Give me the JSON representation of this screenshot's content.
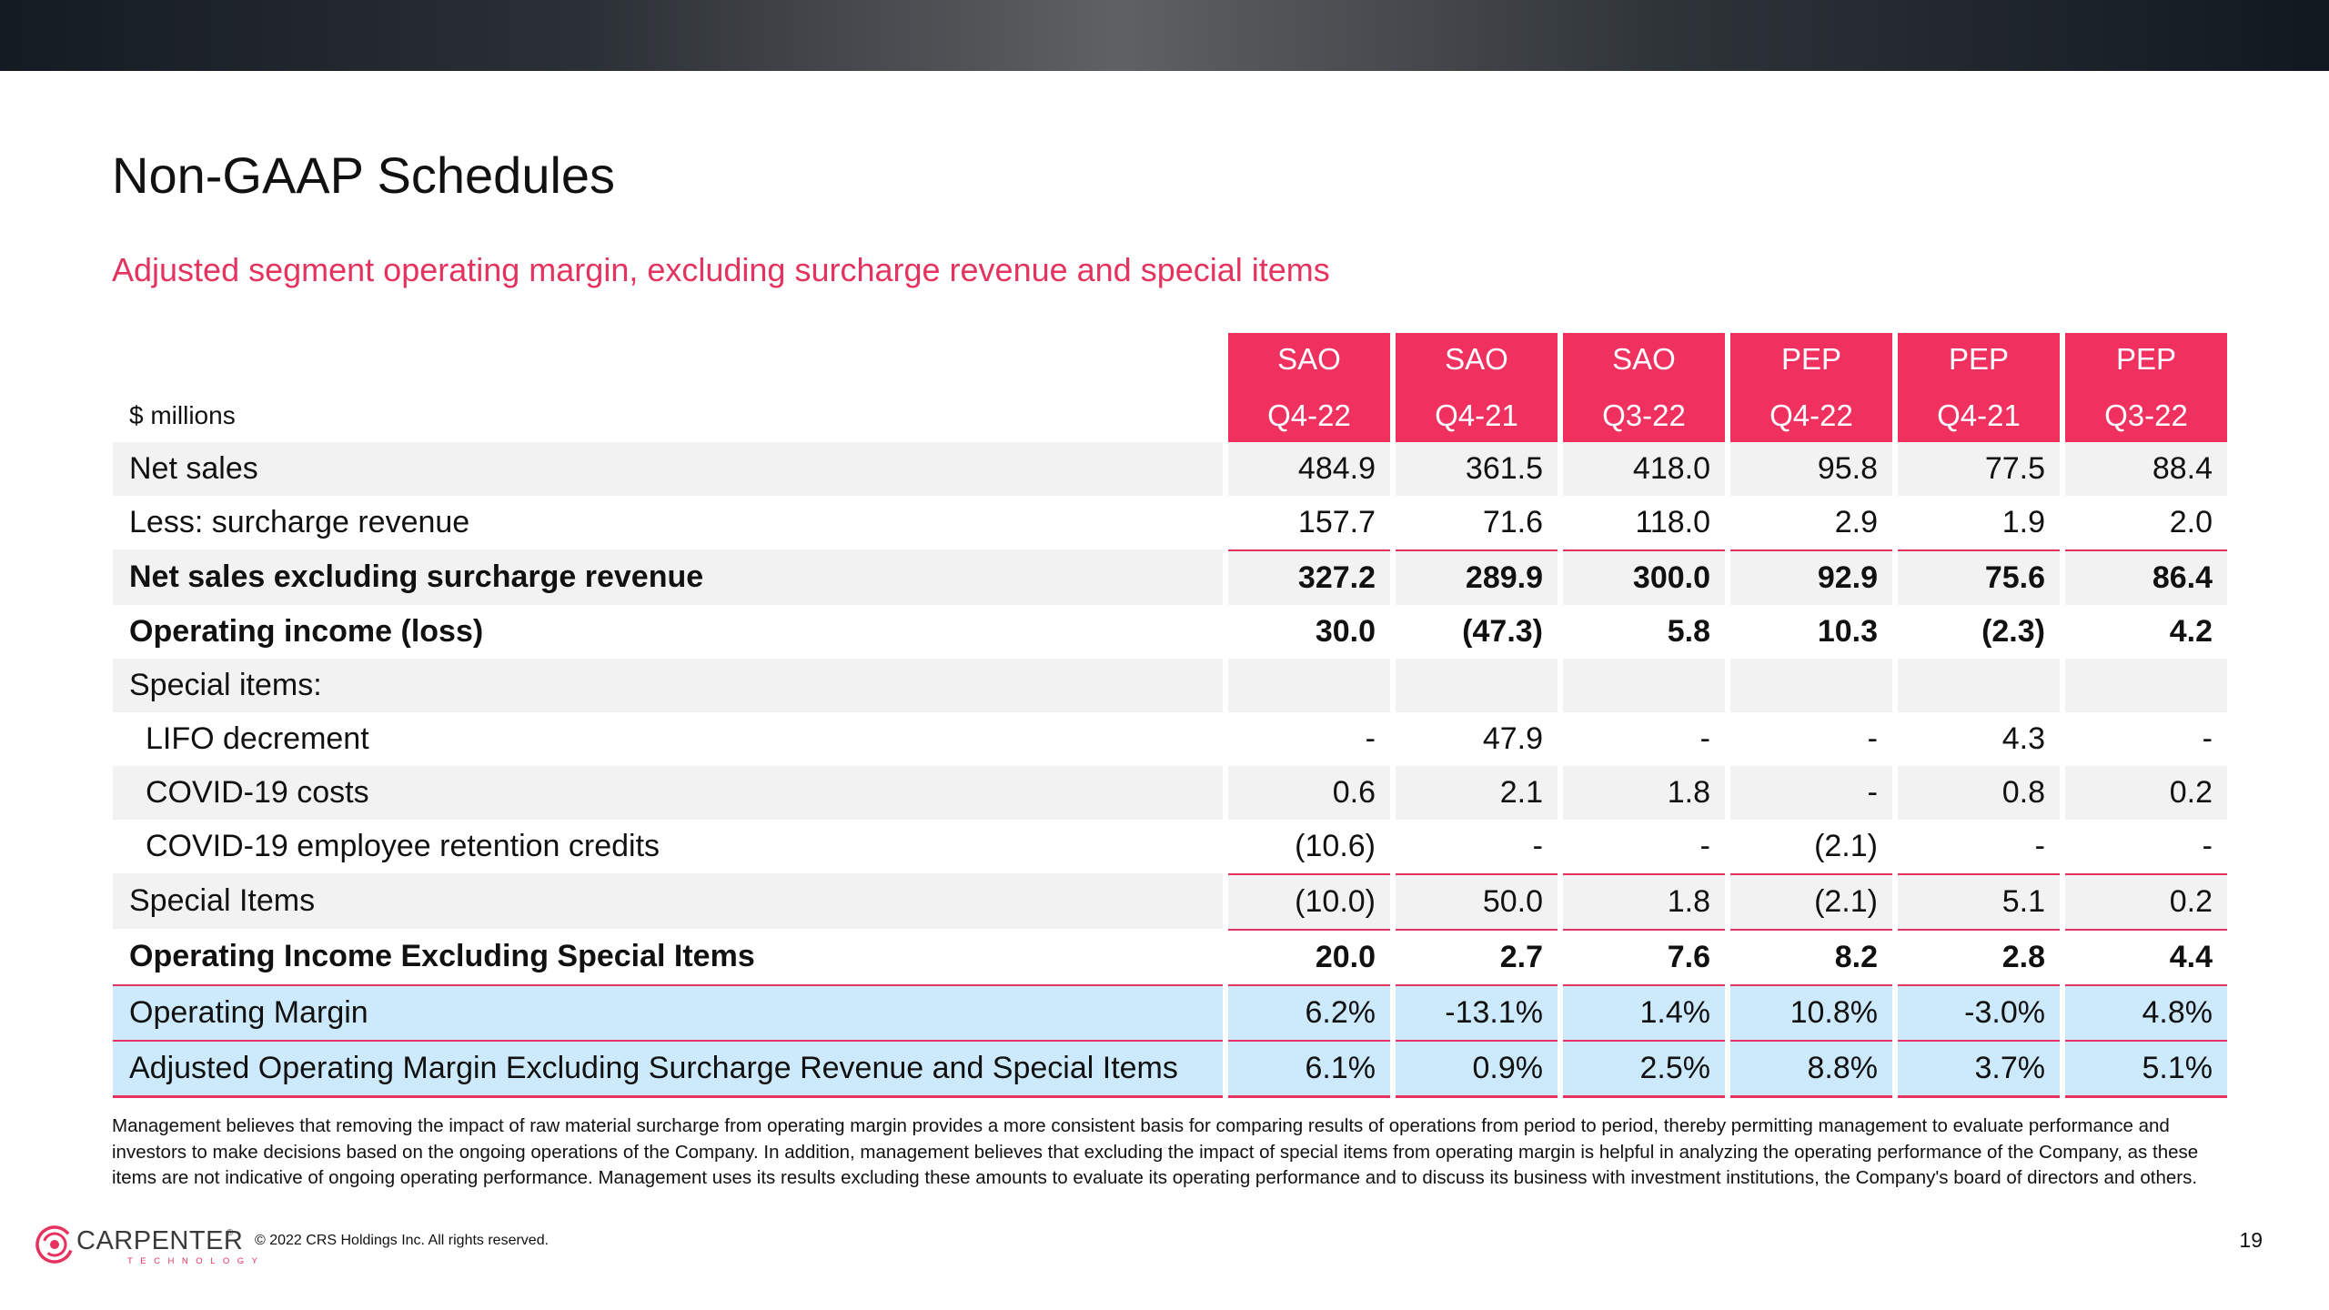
{
  "page": {
    "title": "Non-GAAP Schedules",
    "subtitle": "Adjusted segment operating margin, excluding surcharge revenue and special items"
  },
  "colors": {
    "accent": "#e5335f",
    "header_fill": "#f0305e",
    "row_shade": "#f2f2f2",
    "margin_highlight": "#cdeafc"
  },
  "table": {
    "units_label": "$ millions",
    "segments": [
      "SAO",
      "SAO",
      "SAO",
      "PEP",
      "PEP",
      "PEP"
    ],
    "periods": [
      "Q4-22",
      "Q4-21",
      "Q3-22",
      "Q4-22",
      "Q4-21",
      "Q3-22"
    ],
    "rows": [
      {
        "label": "Net sales",
        "values": [
          "484.9",
          "361.5",
          "418.0",
          "95.8",
          "77.5",
          "88.4"
        ]
      },
      {
        "label": "Less: surcharge revenue",
        "values": [
          "157.7",
          "71.6",
          "118.0",
          "2.9",
          "1.9",
          "2.0"
        ]
      },
      {
        "label": "Net sales excluding surcharge revenue",
        "values": [
          "327.2",
          "289.9",
          "300.0",
          "92.9",
          "75.6",
          "86.4"
        ]
      },
      {
        "label": "Operating income (loss)",
        "values": [
          "30.0",
          "(47.3)",
          "5.8",
          "10.3",
          "(2.3)",
          "4.2"
        ]
      },
      {
        "label": "Special items:",
        "values": [
          "",
          "",
          "",
          "",
          "",
          ""
        ]
      },
      {
        "label": "LIFO decrement",
        "values": [
          "-",
          "47.9",
          "-",
          "-",
          "4.3",
          "-"
        ]
      },
      {
        "label": "COVID-19 costs",
        "values": [
          "0.6",
          "2.1",
          "1.8",
          "-",
          "0.8",
          "0.2"
        ]
      },
      {
        "label": "COVID-19 employee retention credits",
        "values": [
          "(10.6)",
          "-",
          "-",
          "(2.1)",
          "-",
          "-"
        ]
      },
      {
        "label": "Special Items",
        "values": [
          "(10.0)",
          "50.0",
          "1.8",
          "(2.1)",
          "5.1",
          "0.2"
        ]
      },
      {
        "label": "Operating Income Excluding Special Items",
        "values": [
          "20.0",
          "2.7",
          "7.6",
          "8.2",
          "2.8",
          "4.4"
        ]
      },
      {
        "label": "Operating Margin",
        "values": [
          "6.2%",
          "-13.1%",
          "1.4%",
          "10.8%",
          "-3.0%",
          "4.8%"
        ]
      },
      {
        "label": "Adjusted Operating Margin Excluding Surcharge Revenue and Special Items",
        "values": [
          "6.1%",
          "0.9%",
          "2.5%",
          "8.8%",
          "3.7%",
          "5.1%"
        ]
      }
    ]
  },
  "footnote": "Management believes that removing the impact of raw material surcharge from operating margin provides a more consistent basis for comparing results of operations from period to period, thereby permitting management to evaluate performance and investors to make decisions based on the ongoing operations of the Company. In addition, management believes that excluding the impact of special items from operating margin is helpful in analyzing the operating performance of the Company, as these items are not indicative of ongoing operating performance. Management uses its results excluding these amounts to evaluate its operating performance and to discuss its business with investment institutions, the Company's board of directors and others.",
  "footer": {
    "logo_text": "CARPENTER",
    "logo_registered": "®",
    "logo_subtext": "TECHNOLOGY",
    "copyright": "© 2022 CRS Holdings Inc. All rights reserved.",
    "page_number": "19"
  }
}
